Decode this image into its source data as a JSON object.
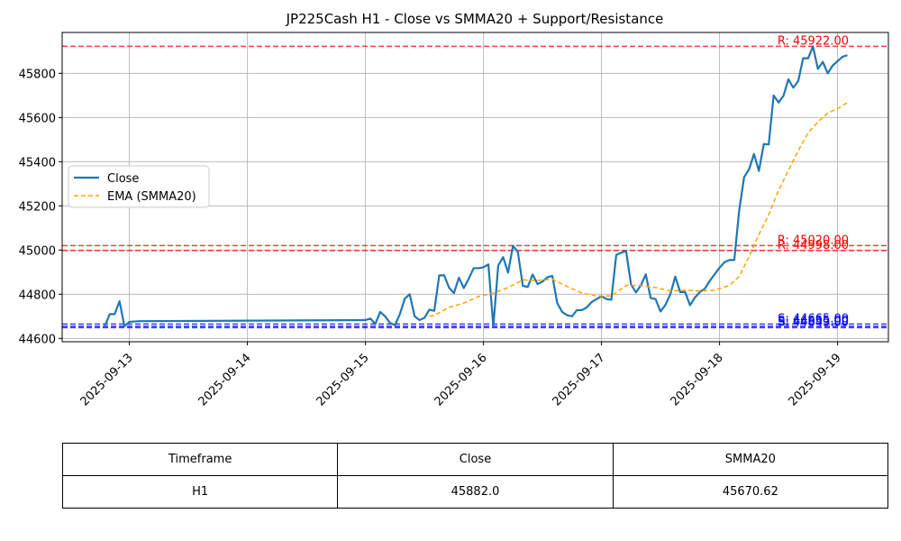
{
  "chart_data": {
    "type": "line",
    "title": "JP225Cash H1 - Close vs SMMA20 + Support/Resistance",
    "xlabel": "",
    "ylabel": "",
    "xlim": [
      "2025-09-12T10:20",
      "2025-09-19T10:20"
    ],
    "ylim": [
      44585,
      45985
    ],
    "x_ticks": [
      "2025-09-13",
      "2025-09-14",
      "2025-09-15",
      "2025-09-16",
      "2025-09-17",
      "2025-09-18",
      "2025-09-19"
    ],
    "y_ticks": [
      44600,
      44800,
      45000,
      45200,
      45400,
      45600,
      45800
    ],
    "grid": true,
    "legend": {
      "position": "center-left",
      "entries": [
        "Close",
        "EMA (SMMA20)"
      ]
    },
    "colors": {
      "close": "#1f77b4",
      "ema": "#ffa500",
      "resistance": "#ff0000",
      "support": "#0000ff"
    },
    "series": [
      {
        "name": "Close",
        "style": "solid",
        "points": [
          [
            "2025-09-12T19:00",
            44655
          ],
          [
            "2025-09-12T20:00",
            44710
          ],
          [
            "2025-09-12T21:00",
            44710
          ],
          [
            "2025-09-12T22:00",
            44768
          ],
          [
            "2025-09-12T23:00",
            44655
          ],
          [
            "2025-09-13T00:00",
            44675
          ],
          [
            "2025-09-13T02:00",
            44678
          ],
          [
            "2025-09-15T00:00",
            44683
          ],
          [
            "2025-09-15T01:00",
            44690
          ],
          [
            "2025-09-15T02:00",
            44665
          ],
          [
            "2025-09-15T03:00",
            44720
          ],
          [
            "2025-09-15T04:00",
            44700
          ],
          [
            "2025-09-15T05:00",
            44670
          ],
          [
            "2025-09-15T06:00",
            44660
          ],
          [
            "2025-09-15T07:00",
            44710
          ],
          [
            "2025-09-15T08:00",
            44780
          ],
          [
            "2025-09-15T09:00",
            44800
          ],
          [
            "2025-09-15T10:00",
            44700
          ],
          [
            "2025-09-15T11:00",
            44683
          ],
          [
            "2025-09-15T12:00",
            44693
          ],
          [
            "2025-09-15T13:00",
            44730
          ],
          [
            "2025-09-15T14:00",
            44725
          ],
          [
            "2025-09-15T15:00",
            44885
          ],
          [
            "2025-09-15T16:00",
            44886
          ],
          [
            "2025-09-15T17:00",
            44830
          ],
          [
            "2025-09-15T18:00",
            44805
          ],
          [
            "2025-09-15T19:00",
            44875
          ],
          [
            "2025-09-15T20:00",
            44828
          ],
          [
            "2025-09-15T21:00",
            44870
          ],
          [
            "2025-09-15T22:00",
            44918
          ],
          [
            "2025-09-15T23:00",
            44918
          ],
          [
            "2025-09-16T00:00",
            44922
          ],
          [
            "2025-09-16T01:00",
            44935
          ],
          [
            "2025-09-16T02:00",
            44655
          ],
          [
            "2025-09-16T03:00",
            44930
          ],
          [
            "2025-09-16T04:00",
            44968
          ],
          [
            "2025-09-16T05:00",
            44898
          ],
          [
            "2025-09-16T06:00",
            45020
          ],
          [
            "2025-09-16T07:00",
            44990
          ],
          [
            "2025-09-16T08:00",
            44838
          ],
          [
            "2025-09-16T09:00",
            44833
          ],
          [
            "2025-09-16T10:00",
            44889
          ],
          [
            "2025-09-16T11:00",
            44846
          ],
          [
            "2025-09-16T12:00",
            44857
          ],
          [
            "2025-09-16T13:00",
            44877
          ],
          [
            "2025-09-16T14:00",
            44883
          ],
          [
            "2025-09-16T15:00",
            44760
          ],
          [
            "2025-09-16T16:00",
            44720
          ],
          [
            "2025-09-16T17:00",
            44705
          ],
          [
            "2025-09-16T18:00",
            44700
          ],
          [
            "2025-09-16T19:00",
            44728
          ],
          [
            "2025-09-16T20:00",
            44728
          ],
          [
            "2025-09-16T21:00",
            44740
          ],
          [
            "2025-09-16T22:00",
            44765
          ],
          [
            "2025-09-16T23:00",
            44778
          ],
          [
            "2025-09-17T00:00",
            44792
          ],
          [
            "2025-09-17T01:00",
            44778
          ],
          [
            "2025-09-17T02:00",
            44775
          ],
          [
            "2025-09-17T03:00",
            44978
          ],
          [
            "2025-09-17T04:00",
            44988
          ],
          [
            "2025-09-17T05:00",
            44995
          ],
          [
            "2025-09-17T06:00",
            44845
          ],
          [
            "2025-09-17T07:00",
            44808
          ],
          [
            "2025-09-17T08:00",
            44840
          ],
          [
            "2025-09-17T09:00",
            44890
          ],
          [
            "2025-09-17T10:00",
            44783
          ],
          [
            "2025-09-17T11:00",
            44778
          ],
          [
            "2025-09-17T12:00",
            44722
          ],
          [
            "2025-09-17T13:00",
            44752
          ],
          [
            "2025-09-17T14:00",
            44800
          ],
          [
            "2025-09-17T15:00",
            44880
          ],
          [
            "2025-09-17T16:00",
            44810
          ],
          [
            "2025-09-17T17:00",
            44810
          ],
          [
            "2025-09-17T18:00",
            44750
          ],
          [
            "2025-09-17T19:00",
            44785
          ],
          [
            "2025-09-17T20:00",
            44810
          ],
          [
            "2025-09-17T21:00",
            44825
          ],
          [
            "2025-09-17T22:00",
            44860
          ],
          [
            "2025-09-17T23:00",
            44890
          ],
          [
            "2025-09-18T00:00",
            44920
          ],
          [
            "2025-09-18T01:00",
            44945
          ],
          [
            "2025-09-18T02:00",
            44955
          ],
          [
            "2025-09-18T03:00",
            44955
          ],
          [
            "2025-09-18T04:00",
            45180
          ],
          [
            "2025-09-18T05:00",
            45330
          ],
          [
            "2025-09-18T06:00",
            45365
          ],
          [
            "2025-09-18T07:00",
            45435
          ],
          [
            "2025-09-18T08:00",
            45358
          ],
          [
            "2025-09-18T09:00",
            45480
          ],
          [
            "2025-09-18T10:00",
            45478
          ],
          [
            "2025-09-18T11:00",
            45700
          ],
          [
            "2025-09-18T12:00",
            45668
          ],
          [
            "2025-09-18T13:00",
            45698
          ],
          [
            "2025-09-18T14:00",
            45773
          ],
          [
            "2025-09-18T15:00",
            45735
          ],
          [
            "2025-09-18T16:00",
            45765
          ],
          [
            "2025-09-18T17:00",
            45868
          ],
          [
            "2025-09-18T18:00",
            45868
          ],
          [
            "2025-09-18T19:00",
            45922
          ],
          [
            "2025-09-18T20:00",
            45820
          ],
          [
            "2025-09-18T21:00",
            45852
          ],
          [
            "2025-09-18T22:00",
            45800
          ],
          [
            "2025-09-18T23:00",
            45835
          ],
          [
            "2025-09-19T00:00",
            45855
          ],
          [
            "2025-09-19T01:00",
            45875
          ],
          [
            "2025-09-19T02:00",
            45882
          ]
        ]
      },
      {
        "name": "EMA (SMMA20)",
        "style": "dashed",
        "points": [
          [
            "2025-09-15T13:00",
            44700
          ],
          [
            "2025-09-15T14:00",
            44705
          ],
          [
            "2025-09-15T17:00",
            44740
          ],
          [
            "2025-09-15T20:00",
            44760
          ],
          [
            "2025-09-15T23:00",
            44790
          ],
          [
            "2025-09-16T02:00",
            44805
          ],
          [
            "2025-09-16T05:00",
            44830
          ],
          [
            "2025-09-16T08:00",
            44865
          ],
          [
            "2025-09-16T11:00",
            44862
          ],
          [
            "2025-09-16T14:00",
            44868
          ],
          [
            "2025-09-16T17:00",
            44835
          ],
          [
            "2025-09-16T20:00",
            44805
          ],
          [
            "2025-09-16T23:00",
            44792
          ],
          [
            "2025-09-17T02:00",
            44792
          ],
          [
            "2025-09-17T05:00",
            44840
          ],
          [
            "2025-09-17T08:00",
            44840
          ],
          [
            "2025-09-17T11:00",
            44830
          ],
          [
            "2025-09-17T14:00",
            44815
          ],
          [
            "2025-09-17T17:00",
            44818
          ],
          [
            "2025-09-17T20:00",
            44815
          ],
          [
            "2025-09-17T23:00",
            44818
          ],
          [
            "2025-09-18T02:00",
            44840
          ],
          [
            "2025-09-18T04:00",
            44880
          ],
          [
            "2025-09-18T06:00",
            44970
          ],
          [
            "2025-09-18T08:00",
            45070
          ],
          [
            "2025-09-18T10:00",
            45160
          ],
          [
            "2025-09-18T12:00",
            45270
          ],
          [
            "2025-09-18T14:00",
            45360
          ],
          [
            "2025-09-18T16:00",
            45450
          ],
          [
            "2025-09-18T18:00",
            45530
          ],
          [
            "2025-09-18T20:00",
            45580
          ],
          [
            "2025-09-18T22:00",
            45620
          ],
          [
            "2025-09-19T00:00",
            45640
          ],
          [
            "2025-09-19T02:00",
            45668
          ]
        ]
      }
    ],
    "resistance_levels": [
      {
        "value": 45922,
        "label": "R: 45922.00"
      },
      {
        "value": 45020,
        "label": "R: 45020.00"
      },
      {
        "value": 44998,
        "label": "R: 44998.00"
      }
    ],
    "support_levels": [
      {
        "value": 44665,
        "label": "S: 44665.00"
      },
      {
        "value": 44655,
        "label": "S: 44655.00"
      },
      {
        "value": 44649,
        "label": "S: 44649.00"
      }
    ]
  },
  "table": {
    "headers": [
      "Timeframe",
      "Close",
      "SMMA20"
    ],
    "rows": [
      [
        "H1",
        "45882.0",
        "45670.62"
      ]
    ]
  }
}
